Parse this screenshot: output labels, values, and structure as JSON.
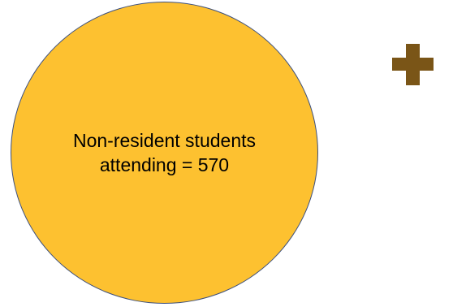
{
  "circle": {
    "label_line1": "Non-resident students",
    "label_line2": "attending = 570",
    "fill_color": "#FDC130",
    "stroke_color": "#3B4F7E"
  },
  "operator": {
    "icon": "plus-icon",
    "color": "#7A5517"
  }
}
